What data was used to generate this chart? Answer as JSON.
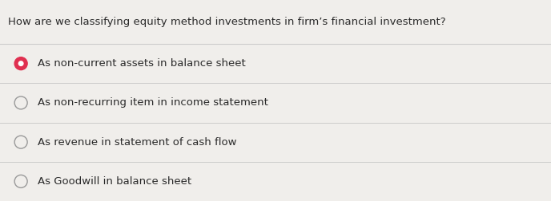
{
  "question": "How are we classifying equity method investments in firm’s financial investment?",
  "options": [
    "As non-current assets in balance sheet",
    "As non-recurring item in income statement",
    "As revenue in statement of cash flow",
    "As Goodwill in balance sheet"
  ],
  "selected_index": 0,
  "bg_color": "#f0eeeb",
  "question_bg_color": "#f0eeeb",
  "option_bg_color": "#f0eeeb",
  "text_color": "#2a2a2a",
  "line_color": "#cccccc",
  "selected_fill": "#e03050",
  "selected_ring": "#e03050",
  "unselected_ring": "#999999",
  "question_fontsize": 9.5,
  "option_fontsize": 9.5
}
